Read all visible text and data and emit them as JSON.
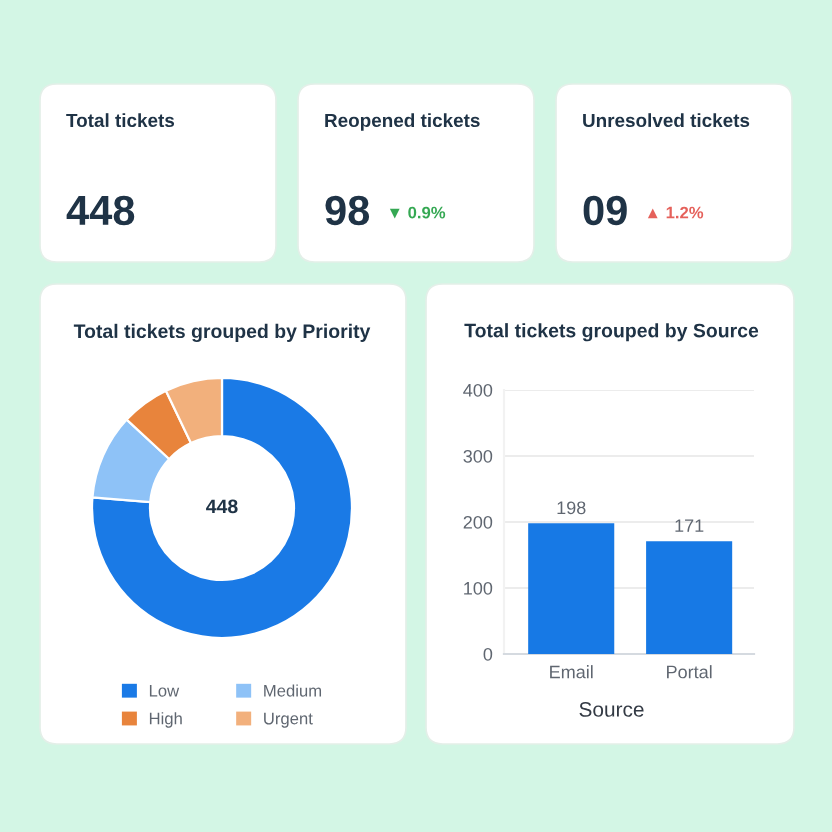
{
  "chart_data": [
    {
      "type": "other",
      "title": "Total tickets",
      "annotations": [
        "448"
      ]
    },
    {
      "type": "other",
      "title": "Reopened tickets",
      "annotations": [
        "98",
        "▼ 0.9%"
      ],
      "color": "#35a853"
    },
    {
      "type": "other",
      "title": "Unresolved tickets",
      "annotations": [
        "09",
        "▲ 1.2%"
      ],
      "color": "#e5615b"
    },
    {
      "type": "donut",
      "title": "Total tickets grouped by Priority",
      "categories": [
        "Low",
        "Medium",
        "High",
        "Urgent"
      ],
      "values": [
        76.3,
        10.6,
        6.0,
        7.1
      ],
      "colors": [
        "#1a7ae6",
        "#8ec2f7",
        "#e8843c",
        "#f2b07c"
      ],
      "annotations": [
        "448"
      ],
      "legend": "bottom"
    },
    {
      "type": "bar",
      "title": "Total tickets grouped by Source",
      "categories": [
        "Email",
        "Portal"
      ],
      "values": [
        198,
        171
      ],
      "color": "#1779e5",
      "ylim": [
        0,
        400
      ],
      "yticks": [
        0,
        100,
        200,
        300,
        400
      ],
      "grid": "y",
      "xlabel": "Source",
      "data_labels": true
    }
  ]
}
